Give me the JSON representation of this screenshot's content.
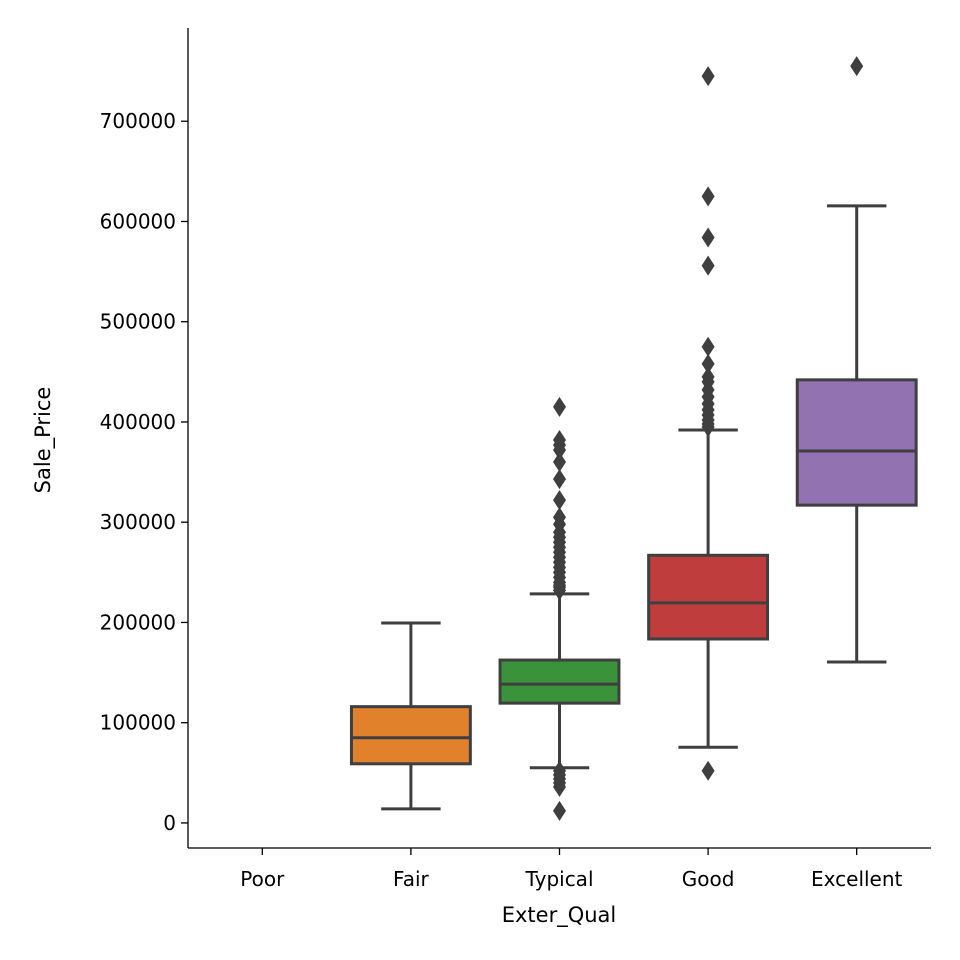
{
  "chart_data": {
    "type": "box",
    "title": "",
    "xlabel": "Exter_Qual",
    "ylabel": "Sale_Price",
    "ylim": [
      -25000,
      793000
    ],
    "yticks": [
      0,
      100000,
      200000,
      300000,
      400000,
      500000,
      600000,
      700000
    ],
    "ytick_labels": [
      "0",
      "100000",
      "200000",
      "300000",
      "400000",
      "500000",
      "600000",
      "700000"
    ],
    "grid": false,
    "categories": [
      "Poor",
      "Fair",
      "Typical",
      "Good",
      "Excellent"
    ],
    "colors": [
      "#3274a1",
      "#e1812c",
      "#3a923a",
      "#c03d3e",
      "#9372b2"
    ],
    "line_color": "#3f3f3f",
    "boxes": [
      null,
      {
        "whislo": 14000,
        "q1": 59000,
        "med": 85000,
        "q3": 116000,
        "whishi": 199500,
        "fliers": []
      },
      {
        "whislo": 55000,
        "q1": 119500,
        "med": 138500,
        "q3": 162500,
        "whishi": 228500,
        "fliers": [
          12000,
          36000,
          40000,
          44000,
          48000,
          52000,
          232000,
          235000,
          237000,
          240000,
          245000,
          250000,
          255000,
          260000,
          265000,
          270000,
          275000,
          280000,
          285000,
          290000,
          298000,
          305000,
          322000,
          343000,
          360000,
          372000,
          377000,
          382000,
          415000
        ]
      },
      {
        "whislo": 75500,
        "q1": 183500,
        "med": 219500,
        "q3": 267000,
        "whishi": 392000,
        "fliers": [
          52000,
          395000,
          398000,
          402000,
          407000,
          412000,
          418000,
          425000,
          432000,
          440000,
          445000,
          458000,
          475000,
          556000,
          584000,
          625000,
          745000
        ]
      },
      {
        "whislo": 160500,
        "q1": 317000,
        "med": 371000,
        "q3": 442000,
        "whishi": 615500,
        "fliers": [
          755000
        ]
      }
    ]
  }
}
